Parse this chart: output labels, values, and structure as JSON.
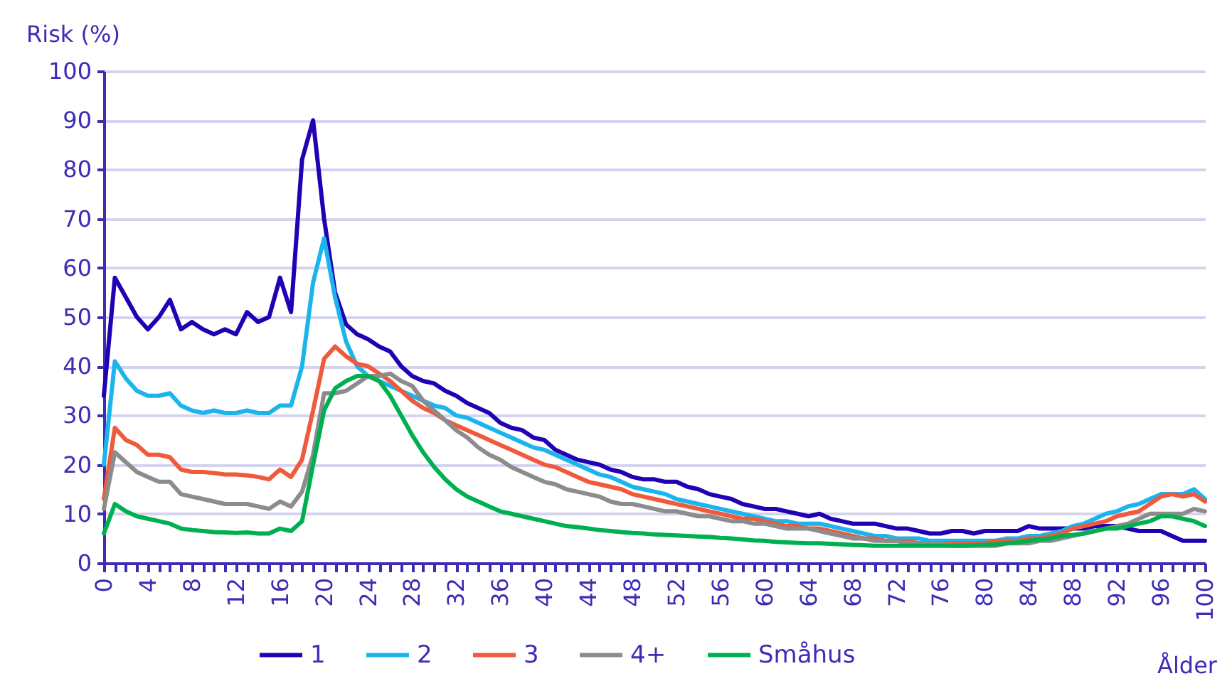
{
  "chart_data": {
    "type": "line",
    "ylabel": "Risk (%)",
    "xlabel": "Ålder",
    "x": [
      0,
      1,
      2,
      3,
      4,
      5,
      6,
      7,
      8,
      9,
      10,
      11,
      12,
      13,
      14,
      15,
      16,
      17,
      18,
      19,
      20,
      21,
      22,
      23,
      24,
      25,
      26,
      27,
      28,
      29,
      30,
      31,
      32,
      33,
      34,
      35,
      36,
      37,
      38,
      39,
      40,
      41,
      42,
      43,
      44,
      45,
      46,
      47,
      48,
      49,
      50,
      51,
      52,
      53,
      54,
      55,
      56,
      57,
      58,
      59,
      60,
      61,
      62,
      63,
      64,
      65,
      66,
      67,
      68,
      69,
      70,
      71,
      72,
      73,
      74,
      75,
      76,
      77,
      78,
      79,
      80,
      81,
      82,
      83,
      84,
      85,
      86,
      87,
      88,
      89,
      90,
      91,
      92,
      93,
      94,
      95,
      96,
      97,
      98,
      99,
      100
    ],
    "series": [
      {
        "name": "1",
        "color": "#2200b4",
        "values": [
          34,
          58,
          54,
          50,
          47.5,
          50,
          53.5,
          47.5,
          49,
          47.5,
          46.5,
          47.5,
          46.5,
          51,
          49,
          50,
          58,
          51,
          82,
          90,
          70,
          55,
          48.5,
          46.5,
          45.5,
          44,
          43,
          40,
          38,
          37,
          36.5,
          35,
          34,
          32.5,
          31.5,
          30.5,
          28.5,
          27.5,
          27,
          25.5,
          25,
          23,
          22,
          21,
          20.5,
          20,
          19,
          18.5,
          17.5,
          17,
          17,
          16.5,
          16.5,
          15.5,
          15,
          14,
          13.5,
          13,
          12,
          11.5,
          11,
          11,
          10.5,
          10,
          9.5,
          10,
          9,
          8.5,
          8,
          8,
          8,
          7.5,
          7,
          7,
          6.5,
          6,
          6,
          6.5,
          6.5,
          6,
          6.5,
          6.5,
          6.5,
          6.5,
          7.5,
          7,
          7,
          7,
          7,
          7,
          7.5,
          7.5,
          7.5,
          7,
          6.5,
          6.5,
          6.5,
          5.5,
          4.5,
          4.5,
          4.5
        ]
      },
      {
        "name": "2",
        "color": "#1cb4ec",
        "values": [
          20,
          41,
          37.5,
          35,
          34,
          34,
          34.5,
          32,
          31,
          30.5,
          31,
          30.5,
          30.5,
          31,
          30.5,
          30.5,
          32,
          32,
          40,
          57,
          66,
          54,
          45,
          40,
          38,
          37,
          36,
          35,
          34,
          33,
          32,
          31.5,
          30,
          29.5,
          28.5,
          27.5,
          26.5,
          25.5,
          24.5,
          23.5,
          23,
          22,
          21,
          20,
          19,
          18,
          17.5,
          16.5,
          15.5,
          15,
          14.5,
          14,
          13,
          12.5,
          12,
          11.5,
          11,
          10.5,
          10,
          9.5,
          9,
          8.5,
          8.5,
          8,
          8,
          8,
          7.5,
          7,
          6.5,
          6,
          5.5,
          5.5,
          5,
          5,
          5,
          4.5,
          4.5,
          4.5,
          4.5,
          4.5,
          4.5,
          4.5,
          5,
          5,
          5.5,
          5.5,
          6,
          6.5,
          7.5,
          8,
          9,
          10,
          10.5,
          11.5,
          12,
          13,
          14,
          14,
          14,
          15,
          13
        ]
      },
      {
        "name": "3",
        "color": "#ef5a3c",
        "values": [
          13,
          27.5,
          25,
          24,
          22,
          22,
          21.5,
          19,
          18.5,
          18.5,
          18.3,
          18,
          18,
          17.8,
          17.5,
          17,
          19,
          17.5,
          21,
          31,
          41.5,
          44,
          42,
          40.5,
          40,
          38.5,
          37,
          35,
          33,
          31.5,
          30.5,
          29,
          28,
          27,
          26,
          25,
          24,
          23,
          22,
          21,
          20,
          19.5,
          18.5,
          17.5,
          16.5,
          16,
          15.5,
          15,
          14,
          13.5,
          13,
          12.5,
          12,
          11.5,
          11,
          10.5,
          10,
          9.5,
          9,
          9,
          8.5,
          8,
          7.5,
          7.5,
          7,
          7,
          6.5,
          6,
          5.5,
          5,
          5,
          4.5,
          4.5,
          4.5,
          4,
          4,
          4,
          4,
          4,
          4,
          4,
          4.5,
          4.5,
          4.5,
          5,
          5,
          5.5,
          6,
          7,
          7.5,
          8,
          8.5,
          9.5,
          10,
          10.5,
          12,
          13.5,
          14,
          13.5,
          14,
          12.5
        ]
      },
      {
        "name": "4+",
        "color": "#8c8c8c",
        "values": [
          11,
          22.5,
          20.5,
          18.5,
          17.5,
          16.5,
          16.5,
          14,
          13.5,
          13,
          12.5,
          12,
          12,
          12,
          11.5,
          11,
          12.5,
          11.5,
          14.5,
          22,
          34.5,
          34.5,
          35,
          36.5,
          38,
          38,
          38.5,
          37,
          36,
          33,
          31,
          29,
          27,
          25.5,
          23.5,
          22,
          21,
          19.5,
          18.5,
          17.5,
          16.5,
          16,
          15,
          14.5,
          14,
          13.5,
          12.5,
          12,
          12,
          11.5,
          11,
          10.5,
          10.5,
          10,
          9.5,
          9.5,
          9,
          8.5,
          8.5,
          8,
          8,
          7.5,
          7,
          7,
          7,
          6.5,
          6,
          5.5,
          5,
          5,
          4.5,
          4.5,
          4.5,
          4,
          4,
          4,
          4,
          3.5,
          3.5,
          3.5,
          3.5,
          3.5,
          4,
          4,
          4,
          4.5,
          4.5,
          5,
          5.5,
          6,
          6.5,
          7,
          7.5,
          8,
          9,
          10,
          10,
          10,
          10,
          11,
          10.5
        ]
      },
      {
        "name": "Småhus",
        "color": "#00b050",
        "values": [
          6,
          12,
          10.5,
          9.5,
          9,
          8.5,
          8,
          7,
          6.7,
          6.5,
          6.3,
          6.2,
          6.1,
          6.2,
          6,
          6,
          7,
          6.5,
          8.5,
          20,
          31,
          35.5,
          37,
          38,
          38,
          37,
          34,
          30,
          26,
          22.5,
          19.5,
          17,
          15,
          13.5,
          12.5,
          11.5,
          10.5,
          10,
          9.5,
          9,
          8.5,
          8,
          7.5,
          7.3,
          7,
          6.7,
          6.5,
          6.3,
          6.1,
          6,
          5.8,
          5.7,
          5.6,
          5.5,
          5.4,
          5.3,
          5.1,
          5,
          4.8,
          4.6,
          4.5,
          4.3,
          4.2,
          4.1,
          4,
          4,
          3.9,
          3.8,
          3.7,
          3.6,
          3.5,
          3.5,
          3.5,
          3.5,
          3.5,
          3.5,
          3.5,
          3.5,
          3.5,
          3.6,
          3.7,
          3.8,
          4,
          4.2,
          4.5,
          4.8,
          5,
          5.5,
          5.7,
          6,
          6.5,
          7,
          7,
          7.5,
          8,
          8.5,
          9.5,
          9.5,
          9,
          8.5,
          7.5
        ]
      }
    ],
    "xlim": [
      0,
      100
    ],
    "xticks": [
      0,
      {
        "value": 1,
        "label": null
      },
      {
        "value": 2,
        "label": null
      },
      {
        "value": 3,
        "label": null
      },
      4,
      {
        "value": 5,
        "label": null
      },
      {
        "value": 6,
        "label": null
      },
      {
        "value": 7,
        "label": null
      },
      8,
      {
        "value": 9,
        "label": null
      },
      {
        "value": 10,
        "label": null
      },
      {
        "value": 11,
        "label": null
      },
      12,
      {
        "value": 13,
        "label": null
      },
      {
        "value": 14,
        "label": null
      },
      {
        "value": 15,
        "label": null
      },
      16,
      {
        "value": 17,
        "label": null
      },
      {
        "value": 18,
        "label": null
      },
      {
        "value": 19,
        "label": null
      },
      20,
      {
        "value": 21,
        "label": null
      },
      {
        "value": 22,
        "label": null
      },
      {
        "value": 23,
        "label": null
      },
      24,
      {
        "value": 25,
        "label": null
      },
      {
        "value": 26,
        "label": null
      },
      {
        "value": 27,
        "label": null
      },
      28,
      {
        "value": 29,
        "label": null
      },
      {
        "value": 30,
        "label": null
      },
      {
        "value": 31,
        "label": null
      },
      32,
      {
        "value": 33,
        "label": null
      },
      {
        "value": 34,
        "label": null
      },
      {
        "value": 35,
        "label": null
      },
      36,
      {
        "value": 37,
        "label": null
      },
      {
        "value": 38,
        "label": null
      },
      {
        "value": 39,
        "label": null
      },
      40,
      {
        "value": 41,
        "label": null
      },
      {
        "value": 42,
        "label": null
      },
      {
        "value": 43,
        "label": null
      },
      44,
      {
        "value": 45,
        "label": null
      },
      {
        "value": 46,
        "label": null
      },
      {
        "value": 47,
        "label": null
      },
      48,
      {
        "value": 49,
        "label": null
      },
      {
        "value": 50,
        "label": null
      },
      {
        "value": 51,
        "label": null
      },
      52,
      {
        "value": 53,
        "label": null
      },
      {
        "value": 54,
        "label": null
      },
      {
        "value": 55,
        "label": null
      },
      56,
      {
        "value": 57,
        "label": null
      },
      {
        "value": 58,
        "label": null
      },
      {
        "value": 59,
        "label": null
      },
      60,
      {
        "value": 61,
        "label": null
      },
      {
        "value": 62,
        "label": null
      },
      {
        "value": 63,
        "label": null
      },
      64,
      {
        "value": 65,
        "label": null
      },
      {
        "value": 66,
        "label": null
      },
      {
        "value": 67,
        "label": null
      },
      68,
      {
        "value": 69,
        "label": null
      },
      {
        "value": 70,
        "label": null
      },
      {
        "value": 71,
        "label": null
      },
      72,
      {
        "value": 73,
        "label": null
      },
      {
        "value": 74,
        "label": null
      },
      {
        "value": 75,
        "label": null
      },
      76,
      {
        "value": 77,
        "label": null
      },
      {
        "value": 78,
        "label": null
      },
      {
        "value": 79,
        "label": null
      },
      80,
      {
        "value": 81,
        "label": null
      },
      {
        "value": 82,
        "label": null
      },
      {
        "value": 83,
        "label": null
      },
      84,
      {
        "value": 85,
        "label": null
      },
      {
        "value": 86,
        "label": null
      },
      {
        "value": 87,
        "label": null
      },
      88,
      {
        "value": 89,
        "label": null
      },
      {
        "value": 90,
        "label": null
      },
      {
        "value": 91,
        "label": null
      },
      92,
      {
        "value": 93,
        "label": null
      },
      {
        "value": 94,
        "label": null
      },
      {
        "value": 95,
        "label": null
      },
      96,
      {
        "value": 97,
        "label": null
      },
      {
        "value": 98,
        "label": null
      },
      {
        "value": 99,
        "label": null
      },
      100
    ],
    "ylim": [
      0,
      100
    ],
    "yticks": [
      0,
      10,
      20,
      30,
      40,
      50,
      60,
      70,
      80,
      90,
      100
    ],
    "grid": "y",
    "legend": "bottom",
    "line_style": "solid"
  }
}
